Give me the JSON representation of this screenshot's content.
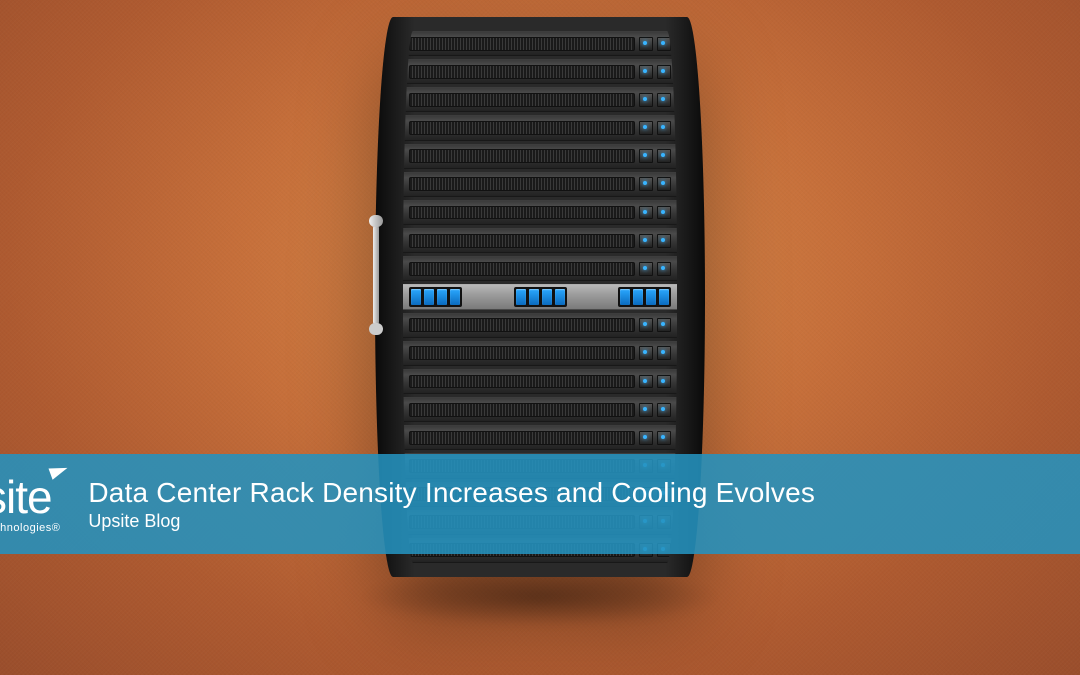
{
  "background": {
    "gradient_center": "#d88a4a",
    "gradient_mid": "#c66f3a",
    "gradient_edge": "#9a4e2c"
  },
  "rack": {
    "unit_count": 19,
    "special_unit_index": 9,
    "drives_per_cluster": 4,
    "cluster_count": 3,
    "led_color": "#39b4ff",
    "drive_color_top": "#2aa8ff",
    "drive_color_bottom": "#0a6bbf"
  },
  "title_bar": {
    "bar_color": "rgba(36,146,190,0.88)",
    "logo_main": "site",
    "logo_sub": "technologies®",
    "headline": "Data Center Rack Density Increases and Cooling Evolves",
    "subhead": "Upsite Blog",
    "text_color": "#ffffff",
    "headline_fontsize": 28,
    "subhead_fontsize": 18
  }
}
